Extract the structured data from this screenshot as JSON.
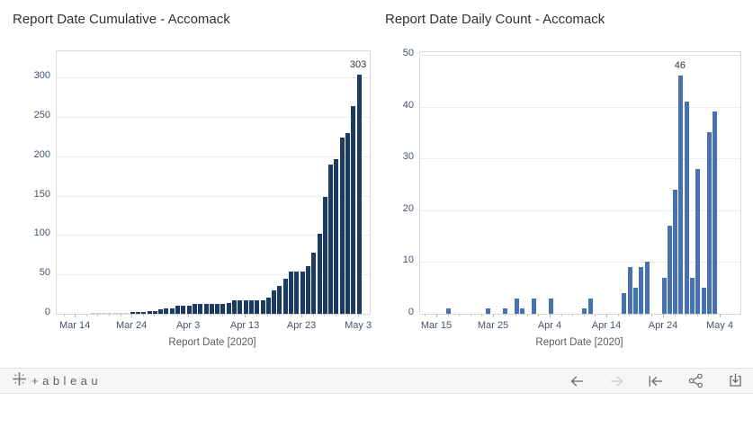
{
  "chart_data": [
    {
      "type": "bar",
      "title": "Report Date Cumulative - Accomack",
      "xlabel": "Report Date [2020]",
      "ylim": [
        0,
        300
      ],
      "grid": true,
      "y_ticks": [
        0,
        50,
        100,
        150,
        200,
        250,
        300
      ],
      "x_tick_labels": [
        "Mar 14",
        "Mar 24",
        "Apr 3",
        "Apr 13",
        "Apr 23",
        "May 3"
      ],
      "x_tick_offsets": [
        -3,
        7,
        17,
        27,
        37,
        47
      ],
      "x": [
        "Mar 17",
        "Mar 18",
        "Mar 19",
        "Mar 20",
        "Mar 21",
        "Mar 22",
        "Mar 23",
        "Mar 24",
        "Mar 25",
        "Mar 26",
        "Mar 27",
        "Mar 28",
        "Mar 29",
        "Mar 30",
        "Mar 31",
        "Apr 1",
        "Apr 2",
        "Apr 3",
        "Apr 4",
        "Apr 5",
        "Apr 6",
        "Apr 7",
        "Apr 8",
        "Apr 9",
        "Apr 10",
        "Apr 11",
        "Apr 12",
        "Apr 13",
        "Apr 14",
        "Apr 15",
        "Apr 16",
        "Apr 17",
        "Apr 18",
        "Apr 19",
        "Apr 20",
        "Apr 21",
        "Apr 22",
        "Apr 23",
        "Apr 24",
        "Apr 25",
        "Apr 26",
        "Apr 27",
        "Apr 28",
        "Apr 29",
        "Apr 30",
        "May 1",
        "May 2",
        "May 3"
      ],
      "values": [
        1,
        1,
        1,
        1,
        1,
        1,
        1,
        2,
        2,
        2,
        3,
        3,
        6,
        7,
        7,
        10,
        10,
        10,
        13,
        13,
        13,
        13,
        13,
        13,
        14,
        17,
        17,
        17,
        17,
        17,
        17,
        21,
        30,
        35,
        44,
        54,
        54,
        54,
        61,
        78,
        102,
        148,
        189,
        196,
        224,
        229,
        264,
        303
      ],
      "bar_label": {
        "index": 47,
        "text": "303"
      },
      "bar_color": "#1b3a64",
      "tiny_bar_color": "#cbcbcb"
    },
    {
      "type": "bar",
      "title": "Report Date Daily Count - Accomack",
      "xlabel": "Report Date [2020]",
      "ylim": [
        0,
        50
      ],
      "grid": true,
      "y_ticks": [
        0,
        10,
        20,
        30,
        40,
        50
      ],
      "x_tick_labels": [
        "Mar 15",
        "Mar 25",
        "Apr 4",
        "Apr 14",
        "Apr 24",
        "May 4"
      ],
      "x_tick_offsets": [
        -2,
        8,
        18,
        28,
        38,
        48
      ],
      "x": [
        "Mar 17",
        "Mar 18",
        "Mar 19",
        "Mar 20",
        "Mar 21",
        "Mar 22",
        "Mar 23",
        "Mar 24",
        "Mar 25",
        "Mar 26",
        "Mar 27",
        "Mar 28",
        "Mar 29",
        "Mar 30",
        "Mar 31",
        "Apr 1",
        "Apr 2",
        "Apr 3",
        "Apr 4",
        "Apr 5",
        "Apr 6",
        "Apr 7",
        "Apr 8",
        "Apr 9",
        "Apr 10",
        "Apr 11",
        "Apr 12",
        "Apr 13",
        "Apr 14",
        "Apr 15",
        "Apr 16",
        "Apr 17",
        "Apr 18",
        "Apr 19",
        "Apr 20",
        "Apr 21",
        "Apr 22",
        "Apr 23",
        "Apr 24",
        "Apr 25",
        "Apr 26",
        "Apr 27",
        "Apr 28",
        "Apr 29",
        "Apr 30",
        "May 1",
        "May 2",
        "May 3"
      ],
      "values": [
        1,
        0,
        0,
        0,
        0,
        0,
        0,
        1,
        0,
        0,
        1,
        0,
        3,
        1,
        0,
        3,
        0,
        0,
        3,
        0,
        0,
        0,
        0,
        0,
        1,
        3,
        0,
        0,
        0,
        0,
        0,
        4,
        9,
        5,
        9,
        10,
        0,
        0,
        7,
        17,
        24,
        46,
        41,
        7,
        28,
        5,
        35,
        39
      ],
      "bar_label": {
        "index": 41,
        "text": "46"
      },
      "bar_color": "#4672b2",
      "tiny_bar_color": "#4672b2"
    }
  ],
  "footer": {
    "wordmark": "+ableau",
    "icons": [
      "tableau-logo-icon",
      "undo-icon",
      "redo-icon",
      "reset-icon",
      "share-icon",
      "download-icon"
    ]
  },
  "colors": {
    "cumulative_bar": "#1b3a64",
    "daily_bar": "#4672b2",
    "gridline": "#ececec",
    "footer_bg": "#f6f6f6"
  }
}
